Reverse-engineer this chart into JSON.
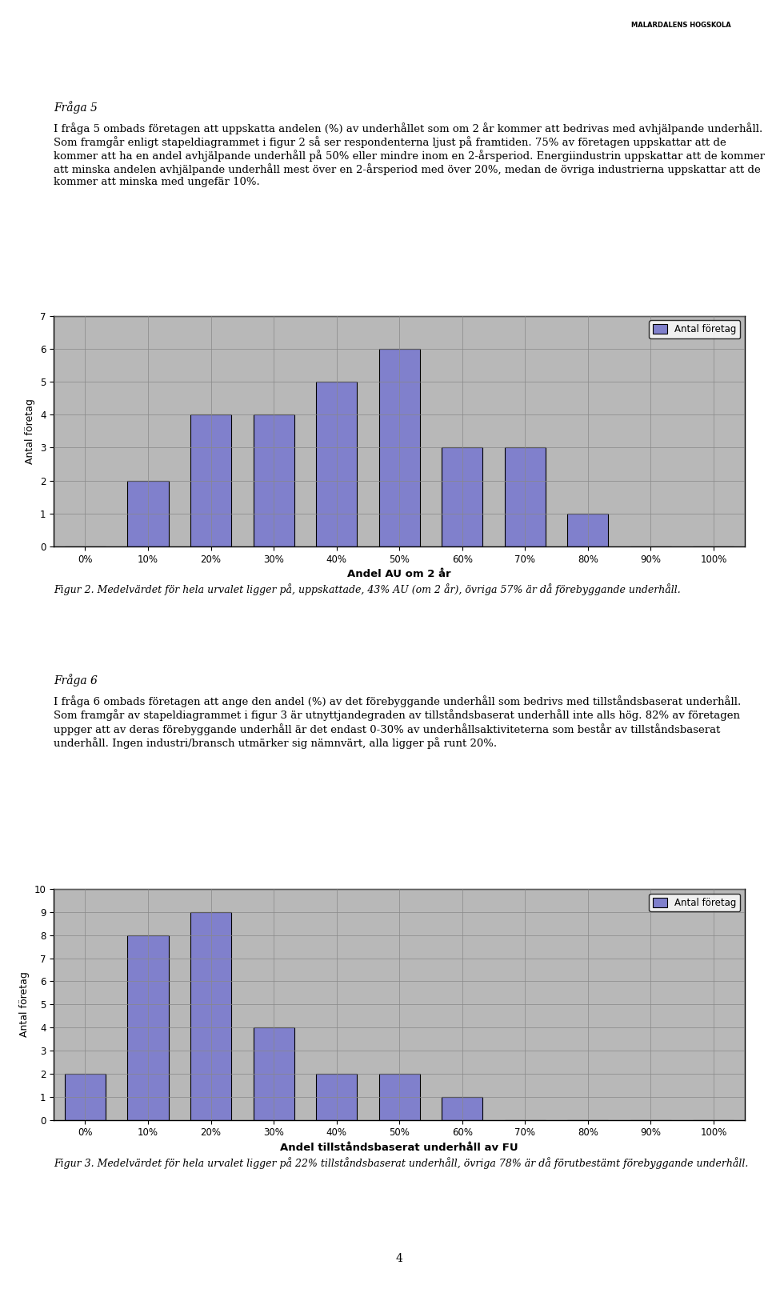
{
  "page_background": "#ffffff",
  "logo_text": "MALARDALENS HOGSKOLA",
  "heading1": "Fråga 5",
  "para1": "I fråga 5 ombads företagen att uppskatta andelen (%) av underhållet som om 2 år kommer att bedrivas med avhjälpande underhåll. Som framgår enligt stapeldiagrammet i figur 2 så ser respondenterna ljust på framtiden. 75% av företagen uppskattar att de kommer att ha en andel avhjälpande underhåll på 50% eller mindre inom en 2-årsperiod. Energiindustrin uppskattar att de kommer att minska andelen avhjälpande underhåll mest över en 2-årsperiod med över 20%, medan de övriga industrierna uppskattar att de kommer att minska med ungefär 10%.",
  "chart1_categories": [
    "0%",
    "10%",
    "20%",
    "30%",
    "40%",
    "50%",
    "60%",
    "70%",
    "80%",
    "90%",
    "100%"
  ],
  "chart1_values": [
    0,
    2,
    4,
    4,
    5,
    6,
    3,
    3,
    1,
    0,
    0
  ],
  "chart1_ylabel": "Antal företag",
  "chart1_xlabel": "Andel AU om 2 år",
  "chart1_legend": "Antal företag",
  "chart1_ylim": [
    0,
    7
  ],
  "chart1_yticks": [
    0,
    1,
    2,
    3,
    4,
    5,
    6,
    7
  ],
  "fig2_caption": "Figur 2. Medelvärdet för hela urvalet ligger på, uppskattade, 43% AU (om 2 år), övriga 57% är då förebyggande underhåll.",
  "heading2": "Fråga 6",
  "para2": "I fråga 6 ombads företagen att ange den andel (%) av det förebyggande underhåll som bedrivs med tillståndsbaserat underhåll.  Som framgår av stapeldiagrammet i figur 3 är utnyttjandegraden av tillståndsbaserat underhåll inte alls hög. 82% av företagen uppger att av deras förebyggande underhåll är det endast 0-30% av underhållsaktiviteterna som består av tillståndsbaserat underhåll. Ingen industri/bransch utmärker sig nämnvärt, alla ligger på runt 20%.",
  "chart2_categories": [
    "0%",
    "10%",
    "20%",
    "30%",
    "40%",
    "50%",
    "60%",
    "70%",
    "80%",
    "90%",
    "100%"
  ],
  "chart2_values": [
    2,
    8,
    9,
    4,
    2,
    2,
    1,
    0,
    0,
    0,
    0
  ],
  "chart2_ylabel": "Antal företag",
  "chart2_xlabel": "Andel tillståndsbaserat underhåll av FU",
  "chart2_legend": "Antal företag",
  "chart2_ylim": [
    0,
    10
  ],
  "chart2_yticks": [
    0,
    1,
    2,
    3,
    4,
    5,
    6,
    7,
    8,
    9,
    10
  ],
  "fig3_caption": "Figur 3. Medelvärdet för hela urvalet ligger på 22% tillståndsbaserat underhåll, övriga 78% är då förutbestämt förebyggande underhåll.",
  "page_number": "4",
  "bar_color": "#8080cc",
  "bar_edge_color": "#000000",
  "chart_bg_color": "#b8b8b8",
  "chart_border_color": "#000000",
  "grid_color": "#888888",
  "legend_box_color": "#8080cc",
  "legend_border_color": "#000000"
}
